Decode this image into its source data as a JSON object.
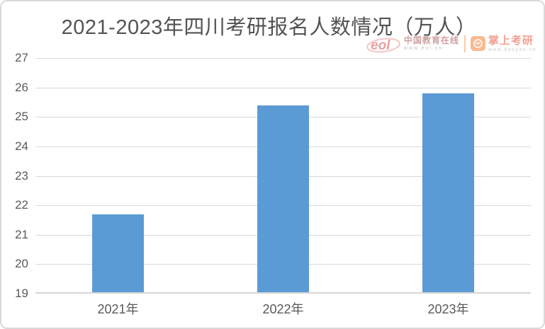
{
  "chart_data": {
    "type": "bar",
    "title": "2021-2023年四川考研报名人数情况（万人）",
    "categories": [
      "2021年",
      "2022年",
      "2023年"
    ],
    "values": [
      21.7,
      25.4,
      25.8
    ],
    "ylim": [
      19,
      27
    ],
    "ytick_step": 1,
    "yticks": [
      19,
      20,
      21,
      22,
      23,
      24,
      25,
      26,
      27
    ],
    "grid": true,
    "legend": "none",
    "bar_color": "#5B9BD5",
    "gridline_color": "#D9D9D9",
    "axis_line_color": "#D6D6D6",
    "tick_label_color": "#595959",
    "title_color": "#535353"
  },
  "watermark": {
    "eol": {
      "logo_text": "eol",
      "name": "中国教育在线",
      "url": "www.eol.cn",
      "accent_color": "#E88F8F"
    },
    "zhangshang": {
      "name": "掌上考研",
      "url": "www.kaoyan.cn",
      "accent_color": "#F19080",
      "icon_color": "#F9AE80"
    }
  }
}
